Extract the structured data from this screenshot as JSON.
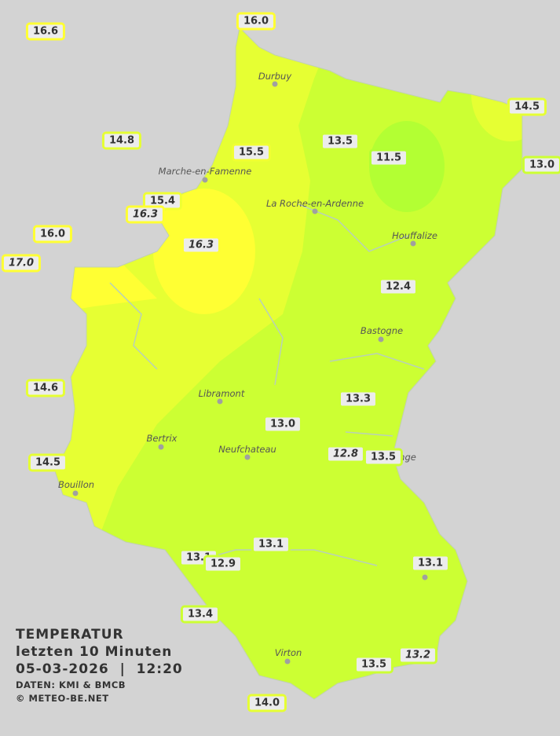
{
  "colors": {
    "background": "#d3d3d3",
    "zone_13": "#ccff33",
    "zone_14": "#e6ff33",
    "zone_16": "#ffff33",
    "zone_11": "#b3ff33",
    "river": "#b8c8b8"
  },
  "cities": [
    "Durbuy",
    "Marche-en-Famenne",
    "La Roche-en-Ardenne",
    "Houffalize",
    "Bastogne",
    "Libramont",
    "Bertrix",
    "Neufchateau",
    "Bouillon",
    "Virton",
    "nge"
  ],
  "stations": [
    {
      "value": "16.6",
      "italic": false,
      "border": "#ffff33"
    },
    {
      "value": "16.0",
      "italic": false,
      "border": "#ffff33"
    },
    {
      "value": "14.5",
      "italic": false,
      "border": "#e6ff33"
    },
    {
      "value": "14.8",
      "italic": false,
      "border": "#e6ff33"
    },
    {
      "value": "13.5",
      "italic": false,
      "border": "#ccff33"
    },
    {
      "value": "15.5",
      "italic": false,
      "border": "#f0ff33"
    },
    {
      "value": "11.5",
      "italic": false,
      "border": "#b3ff33"
    },
    {
      "value": "13.0",
      "italic": false,
      "border": "#ccff33"
    },
    {
      "value": "15.4",
      "italic": false,
      "border": "#f0ff33"
    },
    {
      "value": "16.3",
      "italic": true,
      "border": "#ffff33"
    },
    {
      "value": "16.0",
      "italic": false,
      "border": "#ffff33"
    },
    {
      "value": "16.3",
      "italic": true,
      "border": "#ffff33"
    },
    {
      "value": "17.0",
      "italic": true,
      "border": "#ffff33"
    },
    {
      "value": "12.4",
      "italic": false,
      "border": "#ccff33"
    },
    {
      "value": "14.6",
      "italic": false,
      "border": "#e6ff33"
    },
    {
      "value": "13.3",
      "italic": false,
      "border": "#ccff33"
    },
    {
      "value": "13.0",
      "italic": false,
      "border": "#ccff33"
    },
    {
      "value": "12.8",
      "italic": true,
      "border": "#ccff33"
    },
    {
      "value": "13.5",
      "italic": false,
      "border": "#ccff33"
    },
    {
      "value": "14.5",
      "italic": false,
      "border": "#e6ff33"
    },
    {
      "value": "13.1",
      "italic": false,
      "border": "#ccff33"
    },
    {
      "value": "13.1",
      "italic": false,
      "border": "#ccff33"
    },
    {
      "value": "12.9",
      "italic": false,
      "border": "#ccff33"
    },
    {
      "value": "13.1",
      "italic": false,
      "border": "#ccff33"
    },
    {
      "value": "13.4",
      "italic": false,
      "border": "#ccff33"
    },
    {
      "value": "13.5",
      "italic": false,
      "border": "#ccff33"
    },
    {
      "value": "13.2",
      "italic": true,
      "border": "#ccff33"
    },
    {
      "value": "14.0",
      "italic": false,
      "border": "#e6ff33"
    }
  ],
  "legend": {
    "title": "TEMPERATUR",
    "subtitle": "letzten 10 Minuten",
    "datetime": "05-03-2026  |  12:20",
    "source": "DATEN: KMI & BMCB",
    "copyright": "© METEO-BE.NET"
  }
}
